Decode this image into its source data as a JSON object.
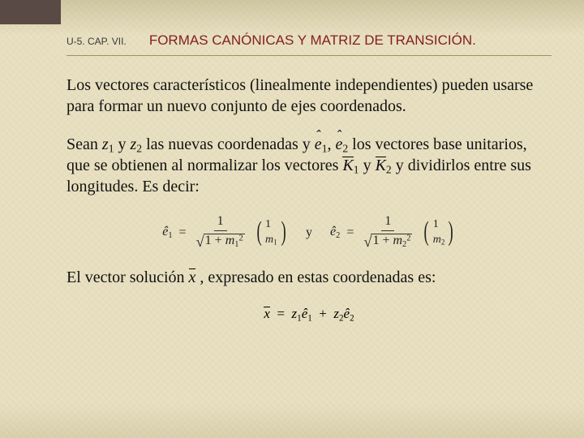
{
  "header": {
    "chapter_ref": "U-5. CAP. VII.",
    "title": "FORMAS CANÓNICAS Y MATRIZ DE TRANSICIÓN."
  },
  "paragraphs": {
    "p1": "Los vectores característicos (linealmente independientes) pueden usarse para formar un nuevo conjunto de ejes coordenados.",
    "p2a": "Sean ",
    "p2_z1": "z",
    "p2_z1_sub": "1",
    "p2b": " y ",
    "p2_z2": "z",
    "p2_z2_sub": "2",
    "p2c": " las nuevas coordenadas y ",
    "p2_e1": "e",
    "p2_e1_sub": "1",
    "p2d": ", ",
    "p2_e2": "e",
    "p2_e2_sub": "2",
    "p2e": " los vectores base unitarios, que se obtienen al normalizar los vectores ",
    "p2_K1": "K",
    "p2_K1_sub": "1",
    "p2f": " y ",
    "p2_K2": "K",
    "p2_K2_sub": "2",
    "p2g": " y dividirlos entre sus longitudes. Es decir:",
    "p3a": "El vector solución ",
    "p3_x": "x",
    "p3b": " , expresado en estas coordenadas es:"
  },
  "equations": {
    "e1_lhs": "ê",
    "e1_lhs_sub": "1",
    "eq_sign": "=",
    "frac_num": "1",
    "one": "1",
    "plus": "+",
    "m": "m",
    "sq": "2",
    "sub1": "1",
    "sub2": "2",
    "and_word": "y",
    "e2_lhs": "ê",
    "e2_lhs_sub": "2",
    "xbar": "x",
    "z": "z",
    "ehat": "ê"
  }
}
